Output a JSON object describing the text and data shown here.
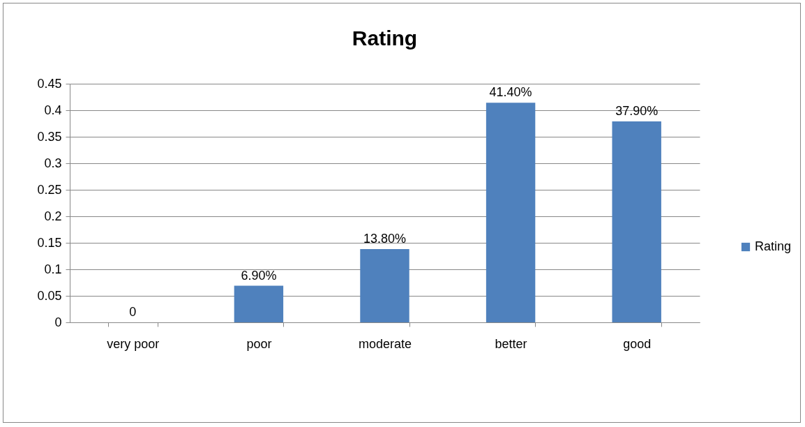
{
  "chart_data": {
    "type": "bar",
    "title": "Rating",
    "categories": [
      "very poor",
      "poor",
      "moderate",
      "better",
      "good"
    ],
    "series": [
      {
        "name": "Rating",
        "color": "#4f81bd",
        "values": [
          0,
          0.069,
          0.138,
          0.414,
          0.379
        ],
        "value_labels": [
          "0",
          "6.90%",
          "13.80%",
          "41.40%",
          "37.90%"
        ]
      }
    ],
    "ylim": [
      0,
      0.45
    ],
    "yticks": [
      0,
      0.05,
      0.1,
      0.15,
      0.2,
      0.25,
      0.3,
      0.35,
      0.4,
      0.45
    ],
    "grid": "y",
    "legend": "right"
  }
}
